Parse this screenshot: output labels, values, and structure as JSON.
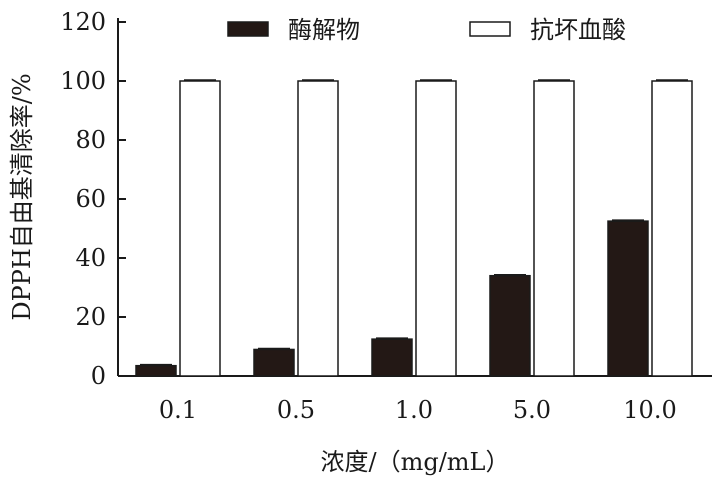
{
  "chart_data": {
    "type": "bar",
    "categories": [
      "0.1",
      "0.5",
      "1.0",
      "5.0",
      "10.0"
    ],
    "series": [
      {
        "name": "酶解物",
        "values": [
          3.5,
          9,
          12.5,
          34,
          52.5
        ],
        "color": "#231815"
      },
      {
        "name": "抗坏血酸",
        "values": [
          100,
          100,
          100,
          100,
          100
        ],
        "color": "#ffffff"
      }
    ],
    "error_bars": true,
    "xlabel": "浓度/（mg/mL）",
    "ylabel": "DPPH自由基清除率/%",
    "ylim": [
      0,
      120
    ],
    "yticks": [
      0,
      20,
      40,
      60,
      80,
      100,
      120
    ],
    "grid": false,
    "legend_position": "top"
  }
}
